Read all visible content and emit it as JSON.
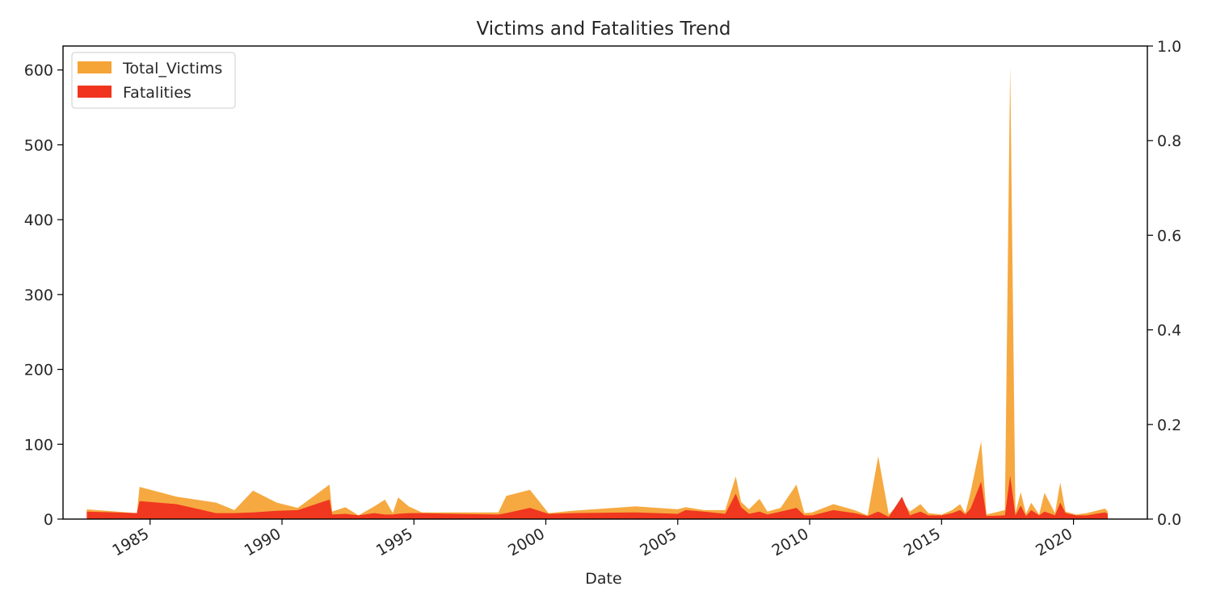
{
  "chart_data": {
    "type": "area",
    "title": "Victims and Fatalities Trend",
    "xlabel": "Date",
    "ylabel": "",
    "xlim": [
      1981.7,
      2022.8
    ],
    "ylim": [
      0,
      632
    ],
    "y_ticks": [
      0,
      100,
      200,
      300,
      400,
      500,
      600
    ],
    "x_ticks": [
      "1985",
      "1990",
      "1995",
      "2000",
      "2005",
      "2010",
      "2015",
      "2020"
    ],
    "secondary_ylim": [
      0,
      1
    ],
    "secondary_y_ticks": [
      "0.0",
      "0.2",
      "0.4",
      "0.6",
      "0.8",
      "1.0"
    ],
    "legend_position": "top-left",
    "grid": false,
    "colors": {
      "Total_Victims": "#f5a436",
      "Fatalities": "#f0341e"
    },
    "x": [
      1982.6,
      1984.5,
      1984.6,
      1986.0,
      1987.5,
      1988.2,
      1988.9,
      1989.8,
      1990.6,
      1991.8,
      1991.9,
      1992.4,
      1992.9,
      1993.5,
      1993.9,
      1994.2,
      1994.4,
      1994.8,
      1995.3,
      1996.5,
      1998.2,
      1998.5,
      1999.4,
      2000.1,
      2001.0,
      2003.4,
      2005.0,
      2005.3,
      2006.0,
      2006.8,
      2007.2,
      2007.4,
      2007.7,
      2008.1,
      2008.4,
      2008.9,
      2009.5,
      2009.8,
      2010.1,
      2010.9,
      2011.7,
      2012.2,
      2012.6,
      2013.0,
      2013.5,
      2013.8,
      2014.2,
      2014.5,
      2015.0,
      2015.4,
      2015.7,
      2015.9,
      2016.1,
      2016.5,
      2016.7,
      2017.4,
      2017.6,
      2017.8,
      2018.0,
      2018.2,
      2018.4,
      2018.7,
      2018.9,
      2019.3,
      2019.5,
      2019.7,
      2020.1,
      2020.5,
      2021.2,
      2021.3
    ],
    "series": [
      {
        "name": "Total_Victims",
        "values": [
          13,
          8,
          43,
          30,
          22,
          12,
          38,
          22,
          15,
          46,
          10,
          16,
          5,
          17,
          26,
          8,
          29,
          17,
          9,
          9,
          9,
          31,
          39,
          8,
          11,
          17,
          13,
          16,
          12,
          12,
          57,
          23,
          13,
          27,
          10,
          15,
          46,
          8,
          9,
          20,
          12,
          5,
          84,
          6,
          25,
          10,
          20,
          8,
          6,
          12,
          20,
          8,
          36,
          104,
          6,
          12,
          605,
          8,
          36,
          7,
          22,
          6,
          35,
          8,
          49,
          10,
          6,
          8,
          14,
          10
        ]
      },
      {
        "name": "Fatalities",
        "values": [
          10,
          8,
          24,
          20,
          8,
          8,
          9,
          11,
          12,
          26,
          6,
          7,
          5,
          8,
          6,
          6,
          7,
          8,
          8,
          7,
          6,
          8,
          15,
          7,
          8,
          9,
          7,
          12,
          10,
          7,
          34,
          16,
          7,
          10,
          6,
          10,
          15,
          5,
          5,
          12,
          8,
          4,
          10,
          3,
          30,
          5,
          10,
          5,
          5,
          8,
          12,
          6,
          14,
          50,
          4,
          5,
          58,
          5,
          18,
          4,
          12,
          5,
          10,
          5,
          22,
          8,
          5,
          5,
          9,
          7
        ]
      }
    ]
  }
}
